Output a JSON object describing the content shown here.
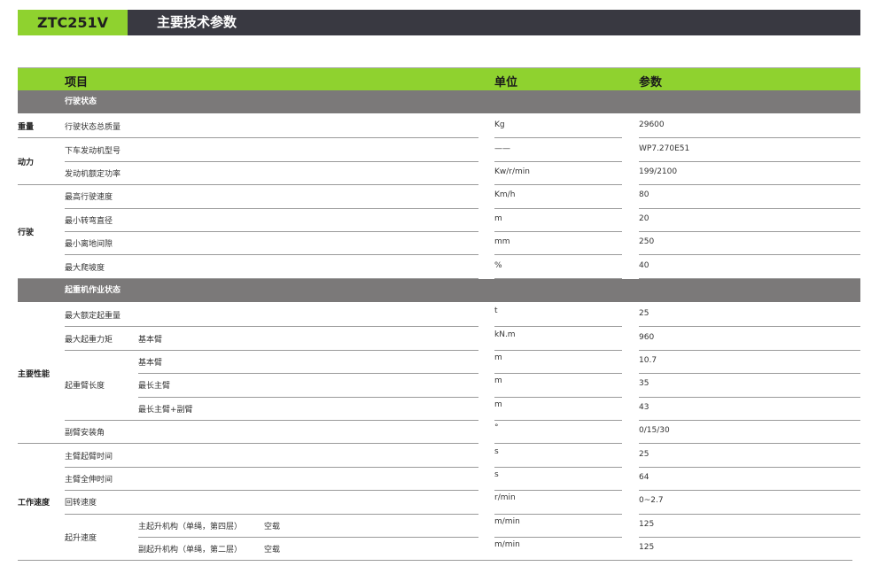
{
  "header": {
    "model": "ZTC251V",
    "title": "主要技术参数"
  },
  "columns": {
    "item": "项目",
    "unit": "单位",
    "value": "参数"
  },
  "sections": [
    {
      "title": "行驶状态",
      "groups": [
        {
          "label": "重量",
          "rows": [
            {
              "item": "行驶状态总质量",
              "unit": "Kg",
              "value": "29600"
            }
          ]
        },
        {
          "label": "动力",
          "rows": [
            {
              "item": "下车发动机型号",
              "unit": "——",
              "value": "WP7.270E51"
            },
            {
              "item": "发动机额定功率",
              "unit": "Kw/r/min",
              "value": "199/2100"
            }
          ]
        },
        {
          "label": "行驶",
          "rows": [
            {
              "item": "最高行驶速度",
              "unit": "Km/h",
              "value": "80"
            },
            {
              "item": "最小转弯直径",
              "unit": "m",
              "value": "20"
            },
            {
              "item": "最小离地间隙",
              "unit": "mm",
              "value": "250"
            },
            {
              "item": "最大爬坡度",
              "unit": "%",
              "value": "40"
            }
          ]
        }
      ]
    },
    {
      "title": "起重机作业状态",
      "groups": [
        {
          "label": "主要性能",
          "rows": [
            {
              "item": "最大额定起重量",
              "unit": "t",
              "value": "25"
            },
            {
              "item": "最大起重力矩",
              "sub": "基本臂",
              "unit": "kN.m",
              "value": "960"
            },
            {
              "item": "起重臂长度",
              "sub": "基本臂",
              "unit": "m",
              "value": "10.7",
              "span": 3
            },
            {
              "sub": "最长主臂",
              "unit": "m",
              "value": "35"
            },
            {
              "sub": "最长主臂+副臂",
              "unit": "m",
              "value": "43"
            },
            {
              "item": "副臂安装角",
              "unit": "°",
              "value": "0/15/30"
            }
          ]
        },
        {
          "label": "工作速度",
          "rows": [
            {
              "item": "主臂起臂时间",
              "unit": "s",
              "value": "25"
            },
            {
              "item": "主臂全伸时间",
              "unit": "s",
              "value": "64"
            },
            {
              "item": "回转速度",
              "unit": "r/min",
              "value": "0~2.7"
            },
            {
              "item": "起升速度",
              "sub": "主起升机构（单绳，第四层）",
              "cond": "空载",
              "unit": "m/min",
              "value": "125",
              "span": 2
            },
            {
              "sub": "副起升机构（单绳，第二层）",
              "cond": "空载",
              "unit": "m/min",
              "value": "125"
            }
          ]
        }
      ]
    }
  ]
}
